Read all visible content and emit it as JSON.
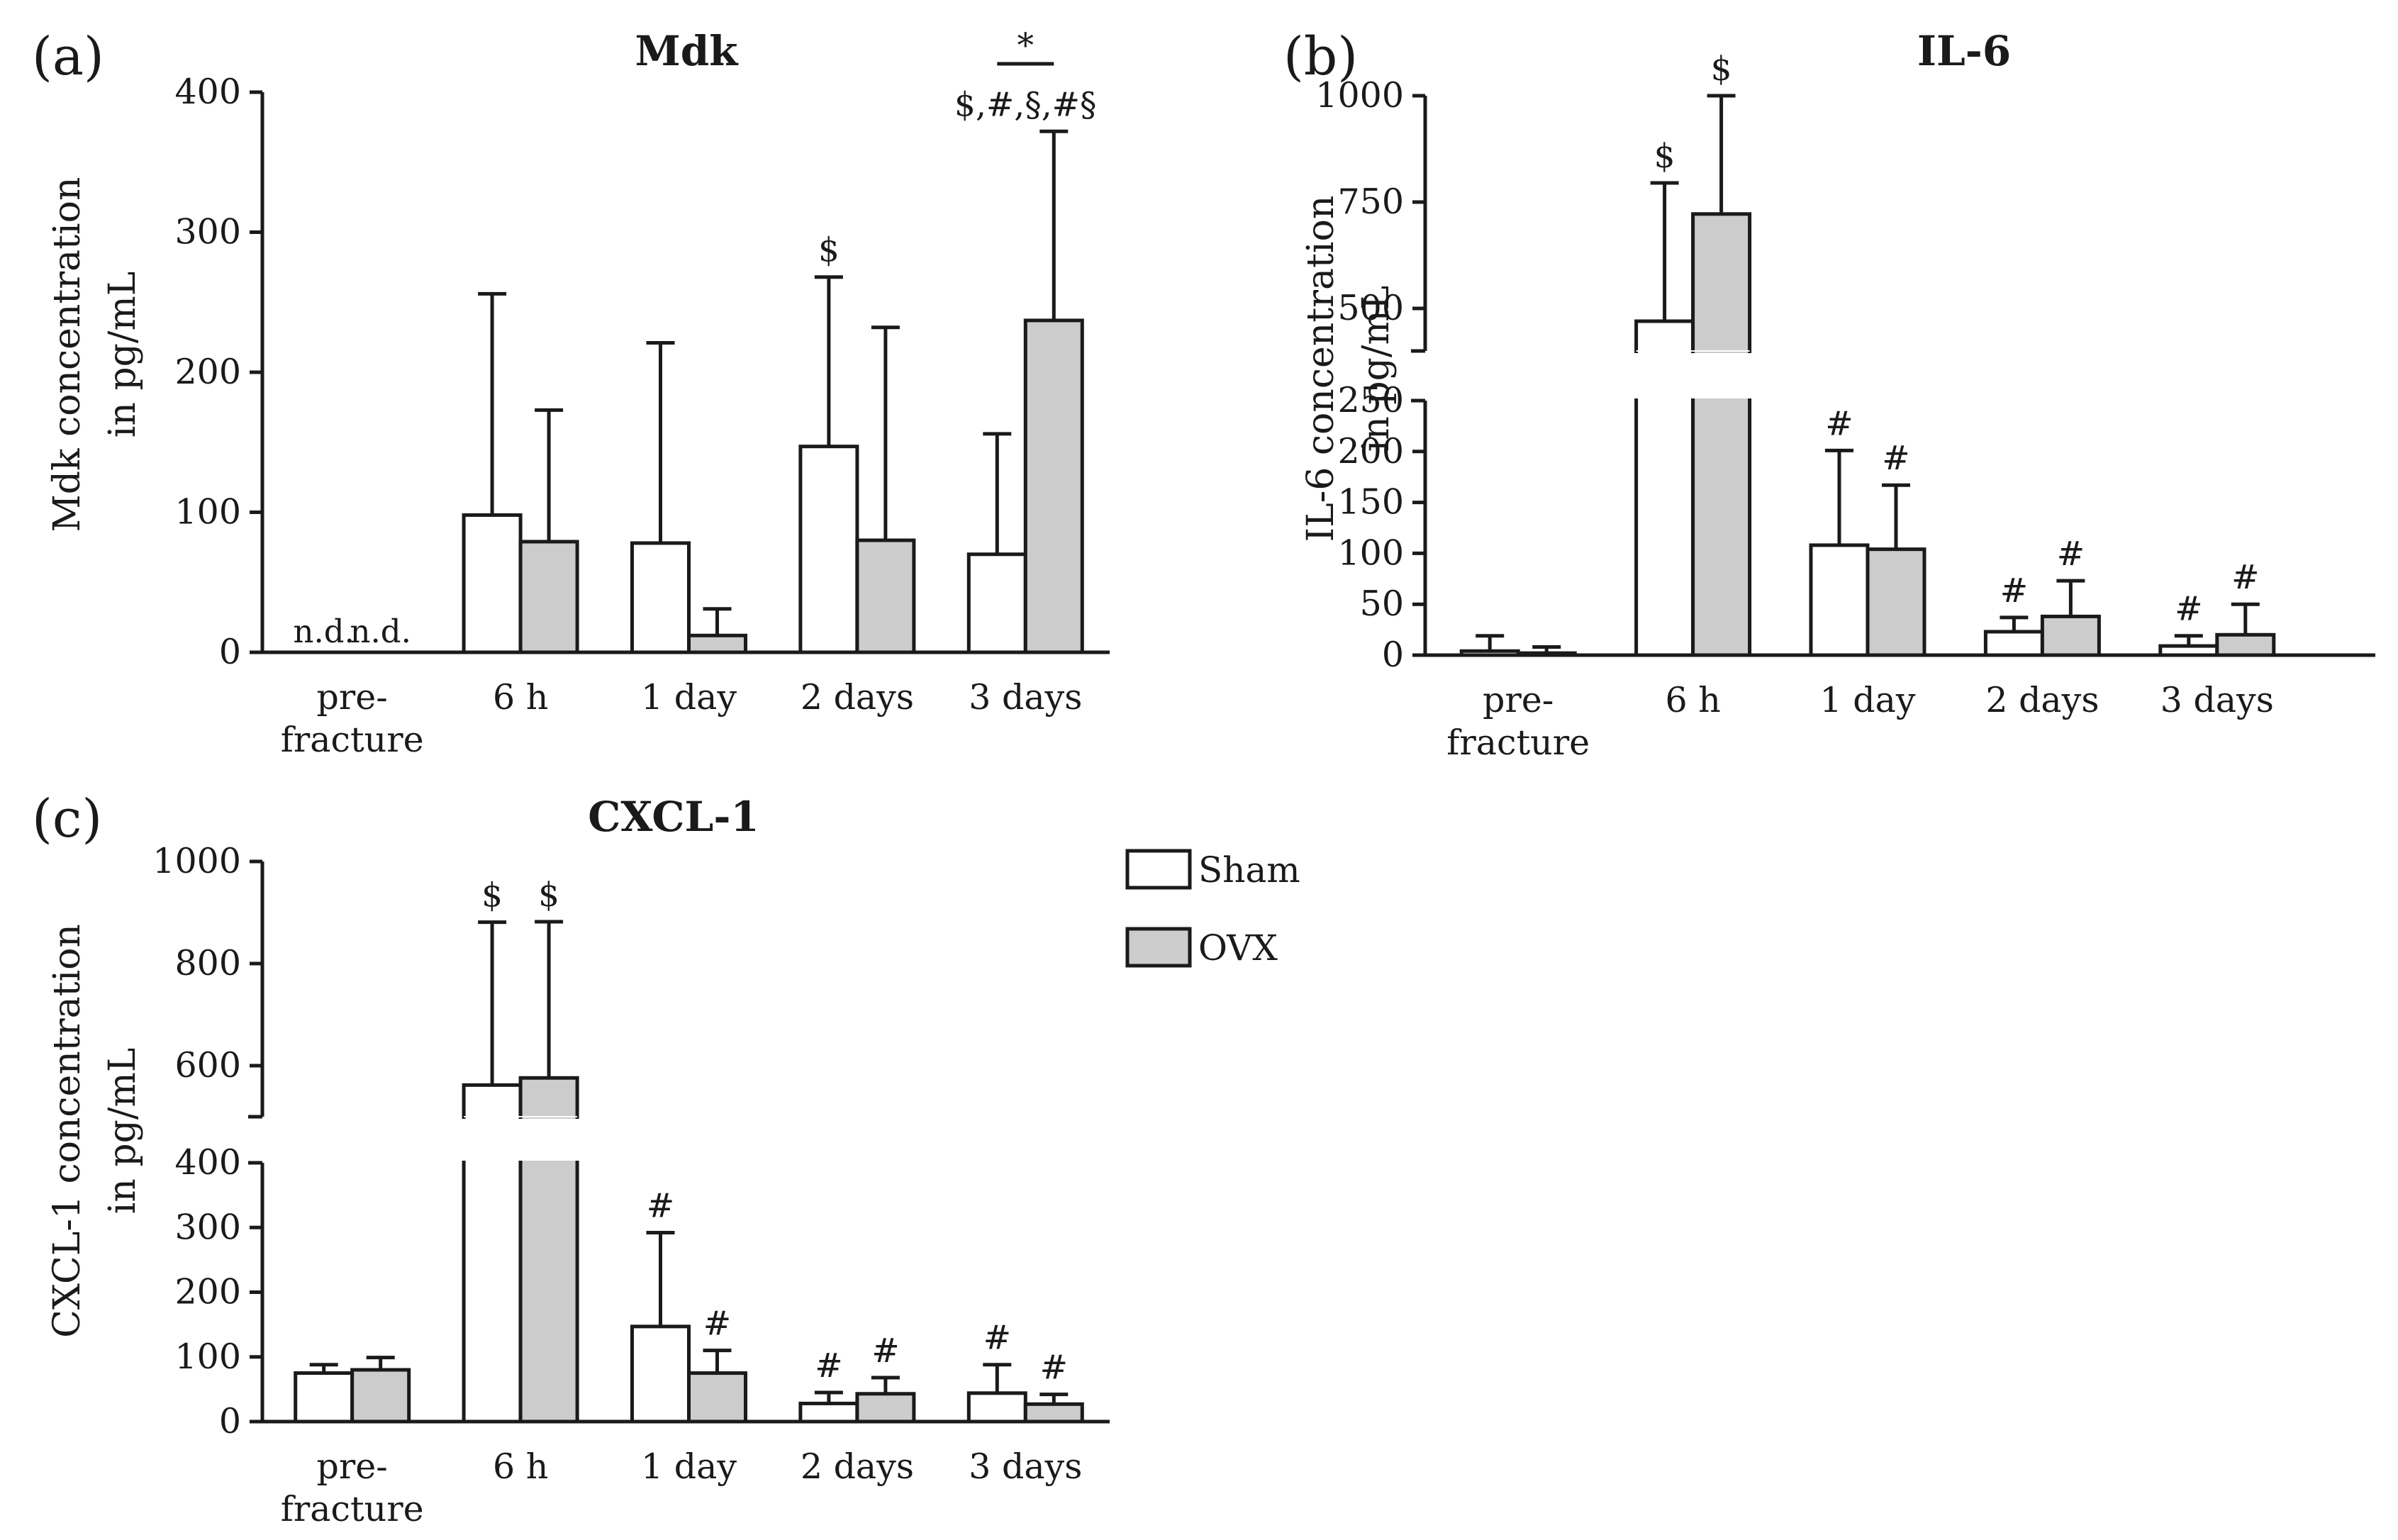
{
  "legend": {
    "items": [
      {
        "label": "Sham",
        "color": "#ffffff"
      },
      {
        "label": "OVX",
        "color": "#cccccc"
      }
    ]
  },
  "chart_data": [
    {
      "id": "a",
      "panel_label": "(a)",
      "type": "bar",
      "title": "Mdk",
      "ylabel": [
        "Mdk concentration",
        "in pg/mL"
      ],
      "categories": [
        [
          "pre-",
          "fracture"
        ],
        [
          "6 h"
        ],
        [
          "1 day"
        ],
        [
          "2 days"
        ],
        [
          "3 days"
        ]
      ],
      "ylim": [
        0,
        400
      ],
      "yticks": [
        0,
        100,
        200,
        300,
        400
      ],
      "broken_axis": null,
      "series": [
        {
          "name": "Sham",
          "values": [
            null,
            98,
            78,
            147,
            70
          ],
          "errors": [
            null,
            256,
            221,
            268,
            156
          ]
        },
        {
          "name": "OVX",
          "values": [
            null,
            79,
            12,
            80,
            237
          ],
          "errors": [
            null,
            173,
            31,
            232,
            372
          ]
        }
      ],
      "nd_labels": [
        "n.d.",
        "n.d."
      ],
      "annotations": [
        {
          "category": 3,
          "series": 0,
          "text": "$"
        },
        {
          "category": 4,
          "series": 1,
          "text": "$,#,§,#§"
        },
        {
          "category": 4,
          "series": "bracket",
          "text": "*"
        }
      ]
    },
    {
      "id": "b",
      "panel_label": "(b)",
      "type": "bar",
      "title": "IL-6",
      "ylabel": [
        "IL-6 concentration",
        "in pg/mL"
      ],
      "categories": [
        [
          "pre-",
          "fracture"
        ],
        [
          "6 h"
        ],
        [
          "1 day"
        ],
        [
          "2 days"
        ],
        [
          "3 days"
        ]
      ],
      "ylim": [
        0,
        1000
      ],
      "yticks_lower": [
        0,
        50,
        100,
        150,
        200,
        250
      ],
      "yticks_upper": [
        500,
        750,
        1000
      ],
      "broken_axis": {
        "lower_max": 250,
        "upper_min": 400,
        "upper_max": 1000
      },
      "series": [
        {
          "name": "Sham",
          "values": [
            4,
            470,
            108,
            23,
            9
          ],
          "errors": [
            19,
            795,
            201,
            37,
            19
          ]
        },
        {
          "name": "OVX",
          "values": [
            2,
            722,
            104,
            38,
            20
          ],
          "errors": [
            8,
            1000,
            167,
            73,
            50
          ]
        }
      ],
      "annotations": [
        {
          "category": 1,
          "series": 0,
          "text": "$"
        },
        {
          "category": 1,
          "series": 1,
          "text": "$"
        },
        {
          "category": 2,
          "series": 0,
          "text": "#"
        },
        {
          "category": 2,
          "series": 1,
          "text": "#"
        },
        {
          "category": 3,
          "series": 0,
          "text": "#"
        },
        {
          "category": 3,
          "series": 1,
          "text": "#"
        },
        {
          "category": 4,
          "series": 0,
          "text": "#"
        },
        {
          "category": 4,
          "series": 1,
          "text": "#"
        }
      ]
    },
    {
      "id": "c",
      "panel_label": "(c)",
      "type": "bar",
      "title": "CXCL-1",
      "ylabel": [
        "CXCL-1 concentration",
        "in pg/mL"
      ],
      "categories": [
        [
          "pre-",
          "fracture"
        ],
        [
          "6 h"
        ],
        [
          "1 day"
        ],
        [
          "2 days"
        ],
        [
          "3 days"
        ]
      ],
      "ylim": [
        0,
        1000
      ],
      "yticks_lower": [
        0,
        100,
        200,
        300,
        400
      ],
      "yticks_upper": [
        600,
        800,
        1000
      ],
      "broken_axis": {
        "lower_max": 400,
        "upper_min": 500,
        "upper_max": 1000
      },
      "series": [
        {
          "name": "Sham",
          "values": [
            75,
            562,
            147,
            28,
            44
          ],
          "errors": [
            88,
            881,
            292,
            45,
            88
          ]
        },
        {
          "name": "OVX",
          "values": [
            80,
            576,
            75,
            43,
            27
          ],
          "errors": [
            99,
            882,
            110,
            68,
            42
          ]
        }
      ],
      "annotations": [
        {
          "category": 1,
          "series": 0,
          "text": "$"
        },
        {
          "category": 1,
          "series": 1,
          "text": "$"
        },
        {
          "category": 2,
          "series": 0,
          "text": "#"
        },
        {
          "category": 2,
          "series": 1,
          "text": "#"
        },
        {
          "category": 3,
          "series": 0,
          "text": "#"
        },
        {
          "category": 3,
          "series": 1,
          "text": "#"
        },
        {
          "category": 4,
          "series": 0,
          "text": "#"
        },
        {
          "category": 4,
          "series": 1,
          "text": "#"
        }
      ]
    }
  ]
}
